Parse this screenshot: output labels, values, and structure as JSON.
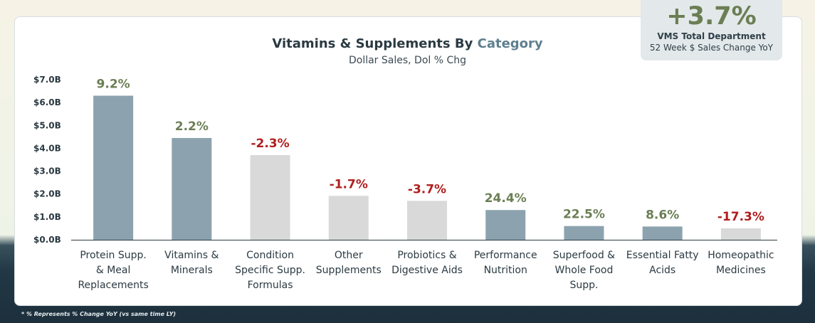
{
  "title_main": "Vitamins & Supplements By",
  "title_accent": "Category",
  "subtitle": "Dollar Sales, Dol % Chg",
  "kpi": {
    "value": "+3.7%",
    "label": "VMS Total Department",
    "sublabel": "52 Week $ Sales Change YoY"
  },
  "footnote": "* % Represents % Change YoY (vs same time LY)",
  "colors": {
    "positive_bar": "#8ca3af",
    "negative_bar": "#d9d9d9",
    "positive_label": "#6b7e54",
    "negative_label": "#b01e1e"
  },
  "chart_data": {
    "type": "bar",
    "title": "Vitamins & Supplements By Category",
    "subtitle": "Dollar Sales, Dol % Chg",
    "ylim": [
      0,
      7
    ],
    "yticks": [
      "$0.0B",
      "$1.0B",
      "$2.0B",
      "$3.0B",
      "$4.0B",
      "$5.0B",
      "$6.0B",
      "$7.0B"
    ],
    "grid": false,
    "categories": [
      [
        "Protein Supp.",
        "& Meal",
        "Replacements"
      ],
      [
        "Vitamins &",
        "Minerals"
      ],
      [
        "Condition",
        "Specific Supp.",
        "Formulas"
      ],
      [
        "Other",
        "Supplements"
      ],
      [
        "Probiotics &",
        "Digestive Aids"
      ],
      [
        "Performance",
        "Nutrition"
      ],
      [
        "Superfood &",
        "Whole Food",
        "Supp."
      ],
      [
        "Essential Fatty",
        "Acids"
      ],
      [
        "Homeopathic",
        "Medicines"
      ]
    ],
    "values": [
      6.3,
      4.45,
      3.7,
      1.92,
      1.7,
      1.3,
      0.6,
      0.58,
      0.5
    ],
    "pct_change_labels": [
      "9.2%",
      "2.2%",
      "-2.3%",
      "-1.7%",
      "-3.7%",
      "24.4%",
      "22.5%",
      "8.6%",
      "-17.3%"
    ],
    "pct_change": [
      9.2,
      2.2,
      -2.3,
      -1.7,
      -3.7,
      24.4,
      22.5,
      8.6,
      -17.3
    ]
  }
}
